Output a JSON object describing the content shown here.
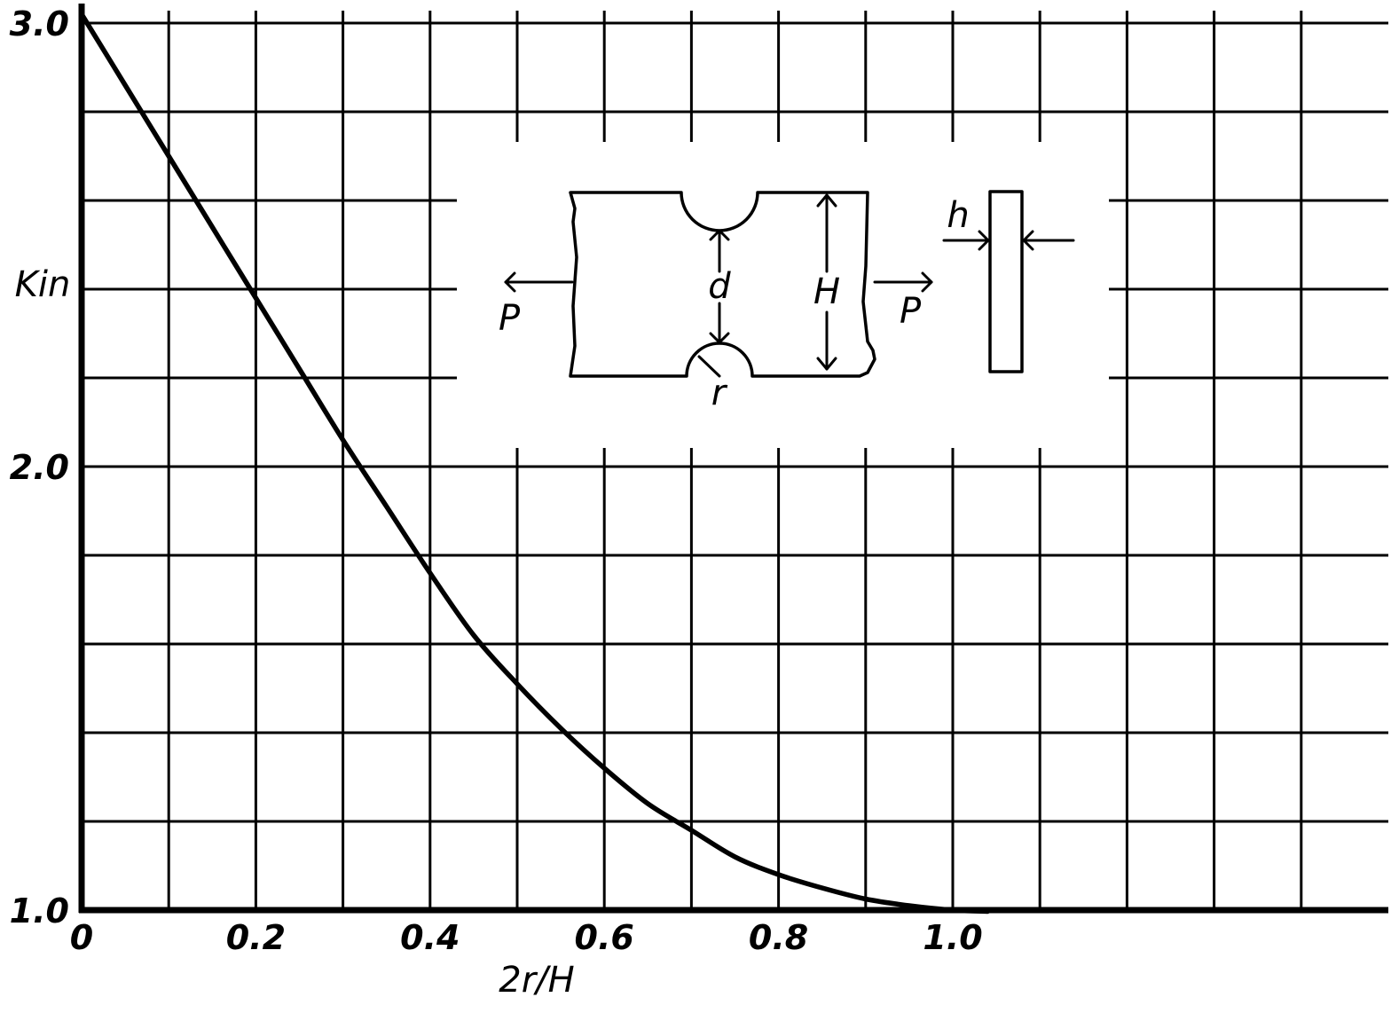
{
  "chart_data": {
    "type": "line",
    "title": "",
    "xlabel": "2r/H",
    "ylabel": "Kin",
    "xlim": [
      0,
      1.5
    ],
    "ylim": [
      1.0,
      3.0
    ],
    "x_tick_labels": [
      "0",
      "0.2",
      "0.4",
      "0.6",
      "0.8",
      "1.0"
    ],
    "x_tick_values": [
      0,
      0.2,
      0.4,
      0.6,
      0.8,
      1.0
    ],
    "y_tick_labels": [
      "1.0",
      "2.0",
      "3.0"
    ],
    "y_tick_values": [
      1.0,
      2.0,
      3.0
    ],
    "grid": true,
    "grid_x_step": 0.1,
    "grid_y_step": 0.2,
    "series": [
      {
        "x": [
          0.0,
          0.05,
          0.1,
          0.15,
          0.2,
          0.25,
          0.3,
          0.35,
          0.4,
          0.45,
          0.5,
          0.55,
          0.6,
          0.65,
          0.7,
          0.75,
          0.8,
          0.85,
          0.9,
          0.95,
          1.0,
          1.04
        ],
        "values": [
          3.02,
          2.86,
          2.7,
          2.54,
          2.38,
          2.22,
          2.06,
          1.91,
          1.76,
          1.62,
          1.51,
          1.41,
          1.32,
          1.24,
          1.18,
          1.12,
          1.08,
          1.05,
          1.025,
          1.01,
          1.0,
          0.997
        ]
      }
    ]
  },
  "inset": {
    "labels": {
      "d": "d",
      "H": "H",
      "P_left": "P",
      "P_right": "P",
      "r": "r",
      "h": "h"
    }
  },
  "colors": {
    "ink": "#000000",
    "background": "#ffffff"
  }
}
